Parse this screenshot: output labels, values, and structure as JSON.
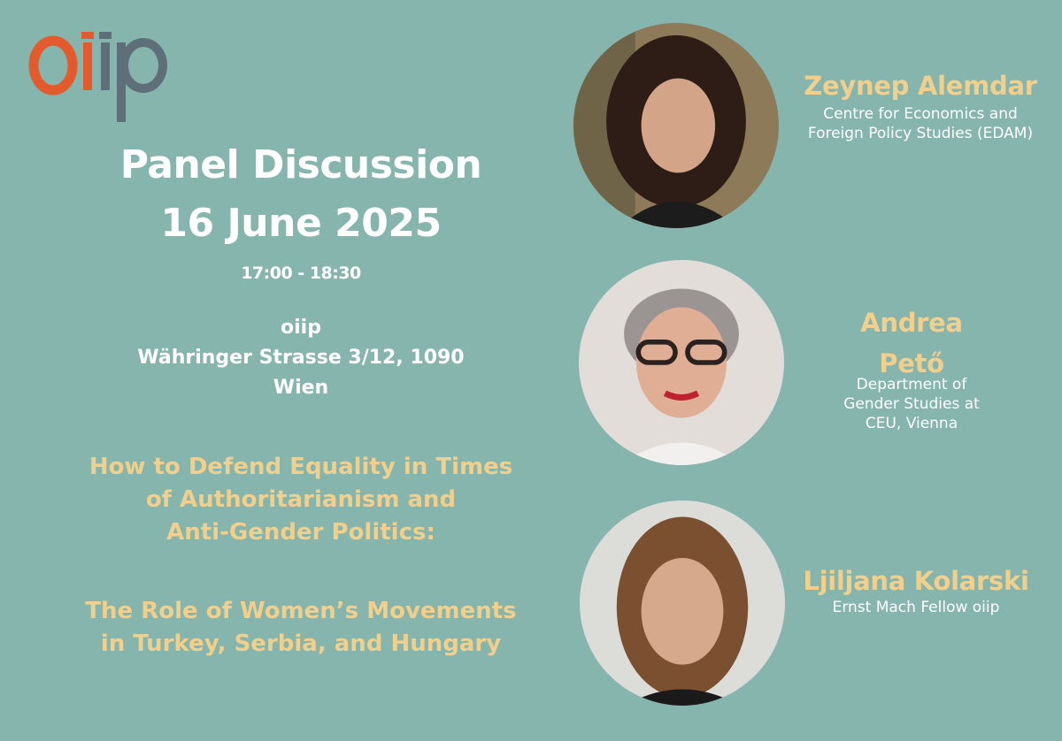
{
  "logo": {
    "text": "oiip",
    "accent": "#e35a2c",
    "gray": "#5f6f7a"
  },
  "event": {
    "title": "Panel Discussion",
    "date": "16 June 2025",
    "time": "17:00 - 18:30",
    "venue_name": "oiip",
    "venue_street": "Währinger Strasse 3/12, 1090",
    "venue_city": "Wien"
  },
  "topic": {
    "line1": "How to Defend Equality in Times",
    "line2": "of Authoritarianism and",
    "line3": "Anti-Gender Politics:",
    "line4": "The Role of Women’s Movements",
    "line5": "in Turkey, Serbia, and Hungary"
  },
  "speakers": [
    {
      "name": "Zeynep Alemdar",
      "affiliation_line1": "Centre for Economics and",
      "affiliation_line2": "Foreign Policy Studies (EDAM)"
    },
    {
      "name_line1": "Andrea",
      "name_line2": "Pető",
      "affiliation_line1": "Department of",
      "affiliation_line2": "Gender Studies at",
      "affiliation_line3": "CEU, Vienna"
    },
    {
      "name": "Ljiljana Kolarski",
      "affiliation_line1": "Ernst Mach Fellow oiip"
    }
  ],
  "colors": {
    "background": "#86b5ad",
    "accent_text": "#f1cf8c",
    "white_text": "#ffffff"
  }
}
